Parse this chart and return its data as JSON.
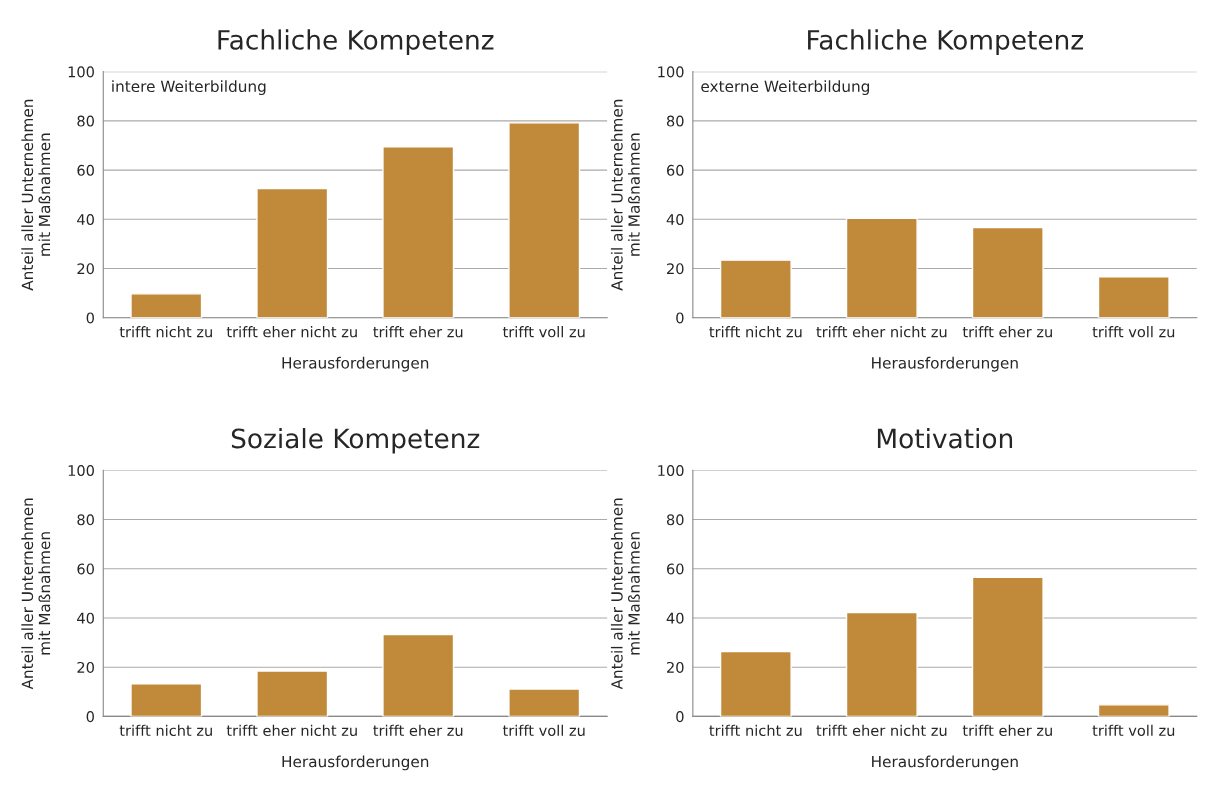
{
  "chart_data": [
    {
      "type": "bar",
      "title": "Fachliche Kompetenz",
      "xlabel": "Herausforderungen",
      "ylabel": "Anteil aller Unternehmen\nmit Maßnahmen",
      "categories": [
        "trifft nicht zu",
        "trifft eher nicht zu",
        "trifft eher zu",
        "trifft voll zu"
      ],
      "values": [
        9.7,
        52.5,
        69.5,
        79.2
      ],
      "color": "#c08a3a",
      "ylim": [
        0,
        100
      ],
      "yticks": [
        0,
        20,
        40,
        60,
        80,
        100
      ],
      "grid": "y",
      "annotations": [
        "intere Weiterbildung"
      ]
    },
    {
      "type": "bar",
      "title": "Fachliche Kompetenz",
      "xlabel": "Herausforderungen",
      "ylabel": "Anteil aller Unternehmen\nmit Maßnahmen",
      "categories": [
        "trifft nicht zu",
        "trifft eher nicht zu",
        "trifft eher zu",
        "trifft voll zu"
      ],
      "values": [
        23.4,
        40.4,
        36.6,
        16.6
      ],
      "color": "#c08a3a",
      "ylim": [
        0,
        100
      ],
      "yticks": [
        0,
        20,
        40,
        60,
        80,
        100
      ],
      "grid": "y",
      "annotations": [
        "externe Weiterbildung"
      ]
    },
    {
      "type": "bar",
      "title": "Soziale Kompetenz",
      "xlabel": "Herausforderungen",
      "ylabel": "Anteil aller Unternehmen\nmit Maßnahmen",
      "categories": [
        "trifft nicht zu",
        "trifft eher nicht zu",
        "trifft eher zu",
        "trifft voll zu"
      ],
      "values": [
        13.2,
        18.4,
        33.3,
        11.1
      ],
      "color": "#c08a3a",
      "ylim": [
        0,
        100
      ],
      "yticks": [
        0,
        20,
        40,
        60,
        80,
        100
      ],
      "grid": "y"
    },
    {
      "type": "bar",
      "title": "Motivation",
      "xlabel": "Herausforderungen",
      "ylabel": "Anteil aller Unternehmen\nmit Maßnahmen",
      "categories": [
        "trifft nicht zu",
        "trifft eher nicht zu",
        "trifft eher zu",
        "trifft voll zu"
      ],
      "values": [
        26.3,
        42.2,
        56.5,
        4.7
      ],
      "color": "#c08a3a",
      "ylim": [
        0,
        100
      ],
      "yticks": [
        0,
        20,
        40,
        60,
        80,
        100
      ],
      "grid": "y"
    }
  ]
}
